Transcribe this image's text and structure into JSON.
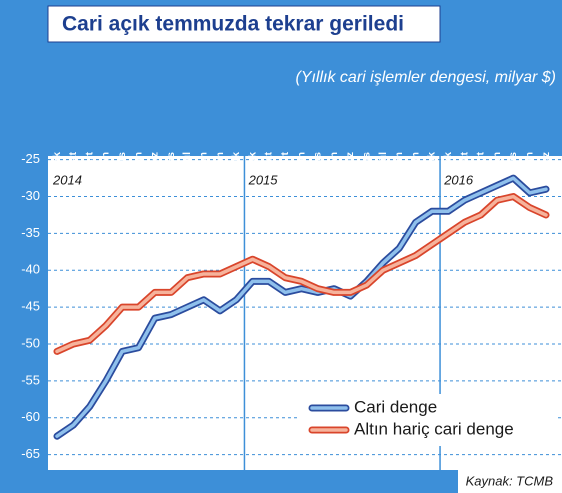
{
  "chart_data": {
    "type": "line",
    "title": "Cari açık temmuzda tekrar geriledi",
    "subtitle": "(Yıllık cari işlemler dengesi, milyar $)",
    "source": "Kaynak: TCMB",
    "annotations": [
      "2014",
      "2015",
      "2016"
    ],
    "categories": [
      "Ocak",
      "Şubat",
      "Mart",
      "Nisan",
      "Mayıs",
      "Haziran",
      "Temmuz",
      "Ağustos",
      "Eylül",
      "Ekim",
      "Kasım",
      "Aralık",
      "Ocak",
      "Şubat",
      "Mart",
      "Nisan",
      "Mayıs",
      "Haziran",
      "Temmuz",
      "Ağustos",
      "Eylül",
      "Ekim",
      "Kasım",
      "Aralık",
      "Ocak",
      "Şubat",
      "Mart",
      "Nisan",
      "Mayıs",
      "Haziran",
      "Temmuz"
    ],
    "series": [
      {
        "name": "Cari denge",
        "color": "#2b4c9e",
        "values": [
          -62.5,
          -61,
          -58.5,
          -55,
          -51,
          -50.5,
          -46.5,
          -46,
          -45,
          -44,
          -45.5,
          -44,
          -41.5,
          -41.5,
          -43,
          -42.5,
          -43,
          -42.5,
          -43.5,
          -41.5,
          -39,
          -37,
          -33.5,
          -32,
          -32,
          -30.5,
          -29.5,
          -28.5,
          -27.5,
          -29.5,
          -29
        ]
      },
      {
        "name": "Altın hariç cari denge",
        "color": "#d9452b",
        "values": [
          -51,
          -50,
          -49.5,
          -47.5,
          -45,
          -45,
          -43,
          -43,
          -41,
          -40.5,
          -40.5,
          -39.5,
          -38.5,
          -39.5,
          -41,
          -41.5,
          -42.5,
          -43,
          -43,
          -42,
          -40,
          -39,
          -38,
          -36.5,
          -35,
          -33.5,
          -32.5,
          -30.5,
          -30,
          -31.5,
          -32.5
        ]
      }
    ],
    "ylim": [
      -66,
      -24.5
    ],
    "yticks": [
      -25,
      -30,
      -35,
      -40,
      -45,
      -50,
      -55,
      -60,
      -65
    ],
    "grid": true
  }
}
